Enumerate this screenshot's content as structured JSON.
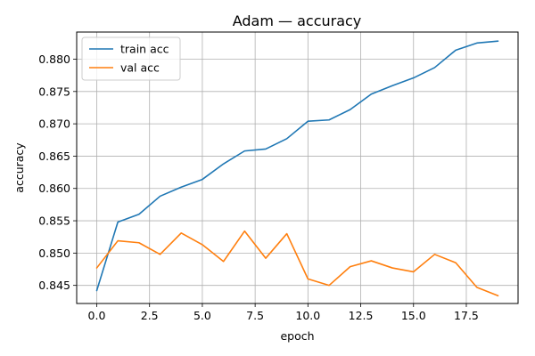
{
  "chart_data": {
    "type": "line",
    "title": "Adam — accuracy",
    "xlabel": "epoch",
    "ylabel": "accuracy",
    "xlim": [
      -0.95,
      19.95
    ],
    "ylim": [
      0.8422,
      0.8842
    ],
    "xticks": [
      0.0,
      2.5,
      5.0,
      7.5,
      10.0,
      12.5,
      15.0,
      17.5
    ],
    "xtick_labels": [
      "0.0",
      "2.5",
      "5.0",
      "7.5",
      "10.0",
      "12.5",
      "15.0",
      "17.5"
    ],
    "yticks": [
      0.845,
      0.85,
      0.855,
      0.86,
      0.865,
      0.87,
      0.875,
      0.88
    ],
    "ytick_labels": [
      "0.845",
      "0.850",
      "0.855",
      "0.860",
      "0.865",
      "0.870",
      "0.875",
      "0.880"
    ],
    "grid": true,
    "legend_position": "top-left",
    "x": [
      0,
      1,
      2,
      3,
      4,
      5,
      6,
      7,
      8,
      9,
      10,
      11,
      12,
      13,
      14,
      15,
      16,
      17,
      18,
      19
    ],
    "series": [
      {
        "name": "train acc",
        "color": "#1f77b4",
        "values": [
          0.8442,
          0.8548,
          0.856,
          0.8588,
          0.8602,
          0.8614,
          0.8638,
          0.8658,
          0.8661,
          0.8677,
          0.8704,
          0.8706,
          0.8722,
          0.8746,
          0.8759,
          0.8771,
          0.8787,
          0.8814,
          0.8825,
          0.8828
        ]
      },
      {
        "name": "val acc",
        "color": "#ff7f0e",
        "values": [
          0.8477,
          0.8519,
          0.8516,
          0.8498,
          0.8531,
          0.8513,
          0.8487,
          0.8534,
          0.8492,
          0.853,
          0.846,
          0.845,
          0.8479,
          0.8488,
          0.8477,
          0.8471,
          0.8498,
          0.8485,
          0.8447,
          0.8434
        ]
      }
    ]
  }
}
